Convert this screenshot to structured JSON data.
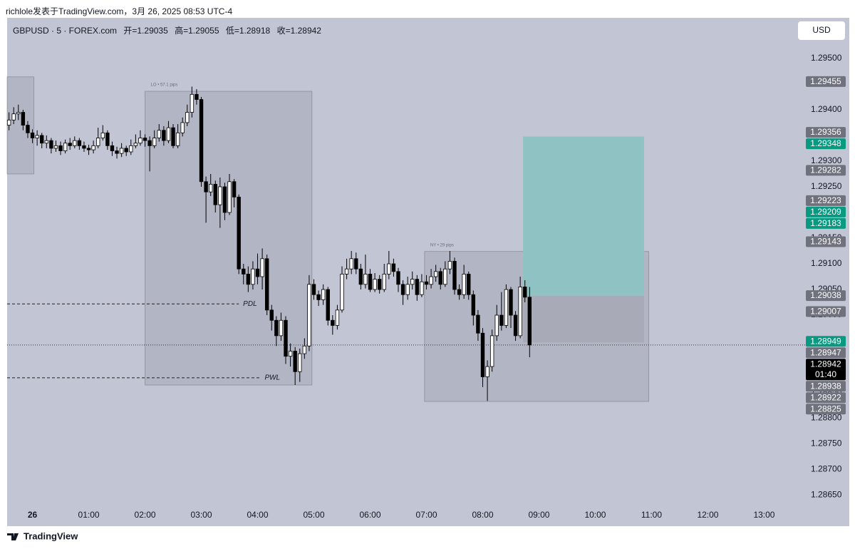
{
  "header": {
    "attribution": "richlole发表于TradingView.com，3月 26, 2025 08:53 UTC-4",
    "symbol": "GBPUSD · 5 · FOREX.com",
    "ohlc_legend": [
      "开=1.29035",
      "高=1.29055",
      "低=1.28918",
      "收=1.28942"
    ],
    "currency_button": "USD",
    "brand": "TradingView"
  },
  "chart_data": {
    "type": "candlestick",
    "x": [
      -25,
      -20,
      -15,
      -10,
      -5,
      0,
      5,
      10,
      15,
      20,
      25,
      30,
      35,
      40,
      45,
      50,
      55,
      60,
      65,
      70,
      75,
      80,
      85,
      90,
      95,
      100,
      105,
      110,
      115,
      120,
      125,
      130,
      135,
      140,
      145,
      150,
      155,
      160,
      165,
      170,
      175,
      180,
      185,
      190,
      195,
      200,
      205,
      210,
      215,
      220,
      225,
      230,
      235,
      240,
      245,
      250,
      255,
      260,
      265,
      270,
      275,
      280,
      285,
      290,
      295,
      300,
      305,
      310,
      315,
      320,
      325,
      330,
      335,
      340,
      345,
      350,
      355,
      360,
      365,
      370,
      375,
      380,
      385,
      390,
      395,
      400,
      405,
      410,
      415,
      420,
      425,
      430,
      435,
      440,
      445,
      450,
      455,
      460,
      465,
      470,
      475,
      480,
      485,
      490,
      495,
      500,
      505,
      510,
      515,
      520,
      525,
      530
    ],
    "open": [
      1.2937,
      1.2938,
      1.29392,
      1.29395,
      1.2937,
      1.29355,
      1.29345,
      1.2935,
      1.29335,
      1.2934,
      1.29325,
      1.2933,
      1.2932,
      1.29335,
      1.2933,
      1.2934,
      1.2933,
      1.29325,
      1.29322,
      1.2933,
      1.29345,
      1.29355,
      1.2933,
      1.2932,
      1.29315,
      1.29325,
      1.29318,
      1.2933,
      1.29335,
      1.29345,
      1.2934,
      1.2933,
      1.29345,
      1.2936,
      1.2934,
      1.29365,
      1.2933,
      1.29355,
      1.29375,
      1.29395,
      1.2943,
      1.2942,
      1.2926,
      1.2924,
      1.29255,
      1.29215,
      1.2925,
      1.292,
      1.2926,
      1.2923,
      1.2909,
      1.2908,
      1.2906,
      1.2909,
      1.29075,
      1.2911,
      1.2901,
      1.2899,
      1.2896,
      1.2899,
      1.2892,
      1.2893,
      1.2889,
      1.28925,
      1.2894,
      1.2906,
      1.2904,
      1.2903,
      1.2905,
      1.2899,
      1.2898,
      1.2901,
      1.2908,
      1.2909,
      1.2911,
      1.2909,
      1.2906,
      1.2908,
      1.2905,
      1.2907,
      1.2905,
      1.2908,
      1.291,
      1.29085,
      1.2906,
      1.2904,
      1.2906,
      1.2907,
      1.2904,
      1.29065,
      1.2906,
      1.29075,
      1.29085,
      1.2906,
      1.2909,
      1.29105,
      1.2905,
      1.2904,
      1.2908,
      1.2904,
      1.29,
      1.28965,
      1.2888,
      1.289,
      1.2896,
      1.29,
      1.2898,
      1.2905,
      1.29,
      1.2896,
      1.29055,
      1.29035
    ],
    "high": [
      1.29395,
      1.29405,
      1.2941,
      1.294,
      1.29378,
      1.29362,
      1.2936,
      1.29355,
      1.2935,
      1.29345,
      1.2934,
      1.29338,
      1.29342,
      1.29345,
      1.29348,
      1.29345,
      1.29338,
      1.29332,
      1.2934,
      1.29365,
      1.2937,
      1.2936,
      1.29338,
      1.29328,
      1.29335,
      1.2933,
      1.29342,
      1.29352,
      1.2936,
      1.29352,
      1.29348,
      1.2936,
      1.29372,
      1.29368,
      1.29378,
      1.29372,
      1.29372,
      1.29385,
      1.2941,
      1.29445,
      1.2944,
      1.29425,
      1.2927,
      1.29275,
      1.29262,
      1.29268,
      1.29258,
      1.29275,
      1.29265,
      1.29235,
      1.291,
      1.29095,
      1.29105,
      1.2912,
      1.2913,
      1.29118,
      1.2902,
      1.28998,
      1.29005,
      1.28998,
      1.28945,
      1.28938,
      1.28935,
      1.28955,
      1.29078,
      1.2907,
      1.29048,
      1.2906,
      1.29055,
      1.29,
      1.2902,
      1.29095,
      1.2911,
      1.29125,
      1.29122,
      1.291,
      1.29118,
      1.2909,
      1.29082,
      1.29078,
      1.291,
      1.29125,
      1.2911,
      1.29092,
      1.29068,
      1.29075,
      1.29085,
      1.29078,
      1.2908,
      1.29078,
      1.2909,
      1.29098,
      1.29092,
      1.29105,
      1.29125,
      1.29112,
      1.2906,
      1.29098,
      1.29085,
      1.29048,
      1.2901,
      1.28975,
      1.28912,
      1.28972,
      1.2902,
      1.29045,
      1.2906,
      1.29055,
      1.29008,
      1.29075,
      1.29068,
      1.29055
    ],
    "low": [
      1.2936,
      1.29372,
      1.2938,
      1.2936,
      1.29345,
      1.29335,
      1.2933,
      1.29325,
      1.29325,
      1.29315,
      1.29318,
      1.29312,
      1.29315,
      1.29322,
      1.29325,
      1.29322,
      1.29318,
      1.29312,
      1.29315,
      1.29325,
      1.2934,
      1.29322,
      1.2931,
      1.29305,
      1.29308,
      1.2931,
      1.29312,
      1.29325,
      1.2933,
      1.29328,
      1.2928,
      1.29325,
      1.29338,
      1.2933,
      1.29335,
      1.29325,
      1.29325,
      1.29348,
      1.29368,
      1.29385,
      1.2941,
      1.2925,
      1.2918,
      1.29232,
      1.292,
      1.2917,
      1.29185,
      1.29195,
      1.2921,
      1.2908,
      1.2906,
      1.29045,
      1.2905,
      1.2906,
      1.2905,
      1.29,
      1.2897,
      1.2894,
      1.2895,
      1.28905,
      1.289,
      1.28864,
      1.2887,
      1.28915,
      1.2893,
      1.2903,
      1.29018,
      1.2902,
      1.2898,
      1.28962,
      1.28972,
      1.29005,
      1.2907,
      1.2908,
      1.2908,
      1.2905,
      1.29052,
      1.29045,
      1.29045,
      1.29042,
      1.29045,
      1.2907,
      1.29075,
      1.29045,
      1.2902,
      1.2903,
      1.2905,
      1.29028,
      1.29035,
      1.2905,
      1.29052,
      1.29065,
      1.2905,
      1.29055,
      1.2908,
      1.2904,
      1.2903,
      1.29032,
      1.2903,
      1.2898,
      1.2895,
      1.2886,
      1.28833,
      1.2889,
      1.2895,
      1.2897,
      1.28975,
      1.28975,
      1.2895,
      1.28955,
      1.29025,
      1.28918
    ],
    "close": [
      1.2938,
      1.29392,
      1.29395,
      1.2937,
      1.29355,
      1.29345,
      1.2935,
      1.29335,
      1.2934,
      1.29325,
      1.2933,
      1.2932,
      1.29335,
      1.2933,
      1.2934,
      1.2933,
      1.29325,
      1.29322,
      1.2933,
      1.29345,
      1.29355,
      1.2933,
      1.2932,
      1.29315,
      1.29325,
      1.29318,
      1.2933,
      1.29335,
      1.29345,
      1.2934,
      1.2933,
      1.29345,
      1.2936,
      1.2934,
      1.29365,
      1.2933,
      1.29355,
      1.29375,
      1.29395,
      1.2943,
      1.2942,
      1.2926,
      1.2924,
      1.29255,
      1.29215,
      1.2925,
      1.292,
      1.2926,
      1.2923,
      1.2909,
      1.2908,
      1.2906,
      1.2909,
      1.29075,
      1.2911,
      1.2901,
      1.2899,
      1.2896,
      1.2899,
      1.2892,
      1.2893,
      1.2889,
      1.28925,
      1.2894,
      1.2906,
      1.2904,
      1.2903,
      1.2905,
      1.2899,
      1.2898,
      1.2901,
      1.2908,
      1.2909,
      1.2911,
      1.2909,
      1.2906,
      1.2908,
      1.2905,
      1.2907,
      1.2905,
      1.2908,
      1.291,
      1.29085,
      1.2906,
      1.2904,
      1.2906,
      1.2907,
      1.2904,
      1.29065,
      1.2906,
      1.29075,
      1.29085,
      1.2906,
      1.2909,
      1.29105,
      1.2905,
      1.2904,
      1.2908,
      1.2904,
      1.29,
      1.28965,
      1.2888,
      1.289,
      1.2896,
      1.29,
      1.2898,
      1.2905,
      1.29,
      1.2896,
      1.29055,
      1.29035,
      1.28942
    ],
    "up_color": "#ffffff",
    "down_color": "#000000",
    "xlim": [
      -27,
      807
    ],
    "xticks": [
      {
        "value": 0,
        "label": "26"
      },
      {
        "value": 60,
        "label": "01:00"
      },
      {
        "value": 120,
        "label": "02:00"
      },
      {
        "value": 180,
        "label": "03:00"
      },
      {
        "value": 240,
        "label": "04:00"
      },
      {
        "value": 300,
        "label": "05:00"
      },
      {
        "value": 360,
        "label": "06:00"
      },
      {
        "value": 420,
        "label": "07:00"
      },
      {
        "value": 480,
        "label": "08:00"
      },
      {
        "value": 540,
        "label": "09:00"
      },
      {
        "value": 600,
        "label": "10:00"
      },
      {
        "value": 660,
        "label": "11:00"
      },
      {
        "value": 720,
        "label": "12:00"
      },
      {
        "value": 780,
        "label": "13:00"
      }
    ],
    "ylim": [
      1.28628,
      1.29579
    ],
    "yticks": [
      {
        "value": 1.295,
        "label": "1.29500"
      },
      {
        "value": 1.2945,
        "label": "1.29450"
      },
      {
        "value": 1.294,
        "label": "1.29400"
      },
      {
        "value": 1.2935,
        "label": "1.29350"
      },
      {
        "value": 1.293,
        "label": "1.29300"
      },
      {
        "value": 1.2925,
        "label": "1.29250"
      },
      {
        "value": 1.292,
        "label": "1.29200"
      },
      {
        "value": 1.2915,
        "label": "1.29150"
      },
      {
        "value": 1.291,
        "label": "1.29100"
      },
      {
        "value": 1.2905,
        "label": "1.29050"
      },
      {
        "value": 1.29,
        "label": "1.29000"
      },
      {
        "value": 1.2895,
        "label": "1.28950"
      },
      {
        "value": 1.289,
        "label": "1.28900"
      },
      {
        "value": 1.2885,
        "label": "1.28850"
      },
      {
        "value": 1.288,
        "label": "1.28800"
      },
      {
        "value": 1.2875,
        "label": "1.28750"
      },
      {
        "value": 1.287,
        "label": "1.28700"
      },
      {
        "value": 1.2865,
        "label": "1.28650"
      }
    ],
    "sessions": [
      {
        "x": [
          -27,
          1.5
        ],
        "y": [
          1.29275,
          1.29464
        ]
      },
      {
        "label": "LO • 57.1 pips",
        "x": [
          120,
          298
        ],
        "y": [
          1.28864,
          1.29436
        ]
      },
      {
        "label": "NY • 29 pips",
        "x": [
          418,
          657
        ],
        "y": [
          1.28832,
          1.29124
        ]
      }
    ],
    "levels": [
      {
        "label": "PDL",
        "value": 1.29022,
        "x": [
          -27,
          220
        ]
      },
      {
        "label": "PWL",
        "value": 1.28878,
        "x": [
          -27,
          243
        ]
      }
    ],
    "position": {
      "x": [
        523,
        652
      ],
      "target": 1.29348,
      "entry": 1.29038,
      "stop": 1.28947,
      "profit_color": "#8fc3c3",
      "loss_color": "#a9aab8"
    },
    "price_badges": [
      {
        "value": 1.29455,
        "color": "#6f717c"
      },
      {
        "value": 1.29356,
        "color": "#6f717c"
      },
      {
        "value": 1.29348,
        "color": "#089981"
      },
      {
        "value": 1.29282,
        "color": "#6f717c"
      },
      {
        "value": 1.29223,
        "color": "#6f717c"
      },
      {
        "value": 1.29209,
        "color": "#089981"
      },
      {
        "value": 1.29183,
        "color": "#089981"
      },
      {
        "value": 1.29143,
        "color": "#6f717c"
      },
      {
        "value": 1.29038,
        "color": "#6f717c"
      },
      {
        "value": 1.29007,
        "color": "#6f717c"
      },
      {
        "value": 1.28949,
        "color": "#089981"
      },
      {
        "value": 1.28947,
        "color": "#6f717c"
      },
      {
        "value": 1.28938,
        "color": "#6f717c"
      },
      {
        "value": 1.28922,
        "color": "#6f717c"
      },
      {
        "value": 1.28825,
        "color": "#6f717c"
      }
    ],
    "last_price": 1.28942,
    "countdown": "01:40"
  }
}
